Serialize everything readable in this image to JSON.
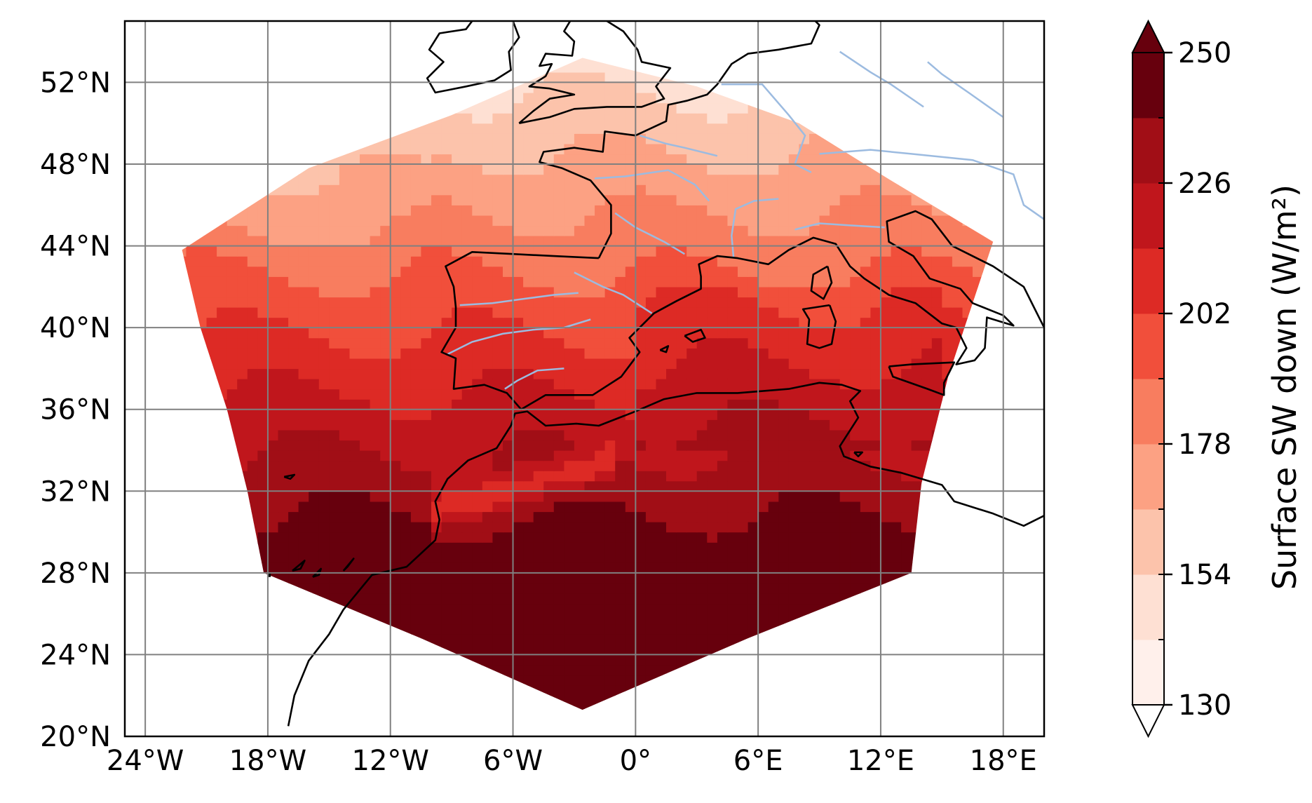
{
  "map": {
    "projection": "PlateCarree",
    "lon_range": [
      -25,
      20
    ],
    "lat_range": [
      20,
      55
    ],
    "gridlines": true,
    "x_ticks": [
      {
        "lon": -24,
        "label": "24°W"
      },
      {
        "lon": -18,
        "label": "18°W"
      },
      {
        "lon": -12,
        "label": "12°W"
      },
      {
        "lon": -6,
        "label": "6°W"
      },
      {
        "lon": 0,
        "label": "0°"
      },
      {
        "lon": 6,
        "label": "6°E"
      },
      {
        "lon": 12,
        "label": "12°E"
      },
      {
        "lon": 18,
        "label": "18°E"
      }
    ],
    "y_ticks": [
      {
        "lat": 52,
        "label": "52°N"
      },
      {
        "lat": 48,
        "label": "48°N"
      },
      {
        "lat": 44,
        "label": "44°N"
      },
      {
        "lat": 40,
        "label": "40°N"
      },
      {
        "lat": 36,
        "label": "36°N"
      },
      {
        "lat": 32,
        "label": "32°N"
      },
      {
        "lat": 28,
        "label": "28°N"
      },
      {
        "lat": 24,
        "label": "24°N"
      },
      {
        "lat": 20,
        "label": "20°N"
      }
    ],
    "domain_outline_lonlat": [
      [
        -2.6,
        53.2
      ],
      [
        3.0,
        51.8
      ],
      [
        8.0,
        50.0
      ],
      [
        12.5,
        47.2
      ],
      [
        17.5,
        44.2
      ],
      [
        15.3,
        37.6
      ],
      [
        14.0,
        32.4
      ],
      [
        13.5,
        28.0
      ],
      [
        5.5,
        24.8
      ],
      [
        -2.6,
        21.3
      ],
      [
        -10.5,
        24.8
      ],
      [
        -18.2,
        28.0
      ],
      [
        -19.0,
        32.0
      ],
      [
        -20.0,
        36.0
      ],
      [
        -21.3,
        40.0
      ],
      [
        -22.2,
        43.8
      ],
      [
        -16.0,
        47.8
      ],
      [
        -9.0,
        50.4
      ]
    ],
    "coastline_color": "#000000",
    "river_color": "#9cbbe0"
  },
  "chart_data": {
    "type": "heatmap",
    "variable_label": "Surface SW down (W/m²)",
    "colorbar": {
      "min": 130,
      "max": 250,
      "extend": "both",
      "tick_labels": [
        "130",
        "154",
        "178",
        "202",
        "226",
        "250"
      ],
      "levels": [
        130,
        142,
        154,
        166,
        178,
        190,
        202,
        214,
        226,
        238,
        250
      ],
      "colors": [
        "#fff0eb",
        "#fee0d3",
        "#fcc3ab",
        "#fca183",
        "#f87d5f",
        "#f14f3b",
        "#dd2a25",
        "#c0161c",
        "#a10e16",
        "#67000d"
      ],
      "under_color": "#ffffff",
      "over_color": "#67000d"
    },
    "fields": [
      {
        "value_range": [
          130,
          154
        ],
        "lat_range": [
          48,
          53
        ],
        "note_lon_range": [
          -16,
          12
        ]
      },
      {
        "value_range": [
          154,
          178
        ],
        "lat_range": [
          42,
          48
        ],
        "note_lon_range": [
          -22,
          15
        ]
      },
      {
        "value_range": [
          178,
          202
        ],
        "lat_range": [
          36,
          42
        ],
        "note_lon_range": [
          -21,
          16
        ]
      },
      {
        "value_range": [
          202,
          226
        ],
        "lat_range": [
          32,
          36
        ],
        "note_lon_range": [
          -20,
          14
        ]
      },
      {
        "value_range": [
          226,
          250
        ],
        "lat_range": [
          21,
          32
        ],
        "note_lon_range": [
          -18,
          14
        ]
      }
    ]
  }
}
